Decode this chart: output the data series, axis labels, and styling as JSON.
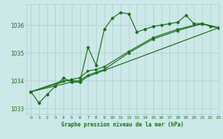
{
  "title": "Graphe pression niveau de la mer (hPa)",
  "bg_color": "#cce8e8",
  "grid_color": "#aacccc",
  "line_color": "#1a6e1a",
  "xlim": [
    -0.5,
    23
  ],
  "ylim": [
    1032.8,
    1036.75
  ],
  "yticks": [
    1033,
    1034,
    1035,
    1036
  ],
  "xticks": [
    0,
    1,
    2,
    3,
    4,
    5,
    6,
    7,
    8,
    9,
    10,
    11,
    12,
    13,
    14,
    15,
    16,
    17,
    18,
    19,
    20,
    21,
    22,
    23
  ],
  "series1": [
    [
      0,
      1033.6
    ],
    [
      1,
      1033.2
    ],
    [
      2,
      1033.5
    ],
    [
      3,
      1033.8
    ],
    [
      4,
      1034.1
    ],
    [
      5,
      1033.95
    ],
    [
      6,
      1033.95
    ],
    [
      7,
      1035.2
    ],
    [
      8,
      1034.55
    ],
    [
      9,
      1035.85
    ],
    [
      10,
      1036.25
    ],
    [
      11,
      1036.45
    ],
    [
      12,
      1036.4
    ],
    [
      13,
      1035.75
    ],
    [
      14,
      1035.85
    ],
    [
      15,
      1035.95
    ],
    [
      16,
      1036.0
    ],
    [
      17,
      1036.05
    ],
    [
      18,
      1036.1
    ],
    [
      19,
      1036.35
    ],
    [
      20,
      1036.05
    ],
    [
      21,
      1036.05
    ],
    [
      22,
      1035.95
    ],
    [
      23,
      1035.9
    ]
  ],
  "series2": [
    [
      0,
      1033.6
    ],
    [
      5,
      1034.05
    ],
    [
      6,
      1034.1
    ],
    [
      7,
      1034.35
    ],
    [
      8,
      1034.4
    ],
    [
      9,
      1034.5
    ],
    [
      12,
      1035.05
    ],
    [
      15,
      1035.55
    ],
    [
      18,
      1035.85
    ],
    [
      21,
      1036.05
    ],
    [
      23,
      1035.9
    ]
  ],
  "series3": [
    [
      0,
      1033.6
    ],
    [
      4,
      1034.0
    ],
    [
      5,
      1034.0
    ],
    [
      6,
      1034.0
    ],
    [
      7,
      1034.2
    ],
    [
      8,
      1034.3
    ],
    [
      9,
      1034.4
    ],
    [
      12,
      1035.0
    ],
    [
      15,
      1035.5
    ],
    [
      18,
      1035.8
    ],
    [
      21,
      1036.05
    ],
    [
      23,
      1035.9
    ]
  ],
  "series4": [
    [
      0,
      1033.6
    ],
    [
      5,
      1033.95
    ],
    [
      6,
      1033.95
    ],
    [
      7,
      1034.15
    ],
    [
      23,
      1035.9
    ]
  ]
}
